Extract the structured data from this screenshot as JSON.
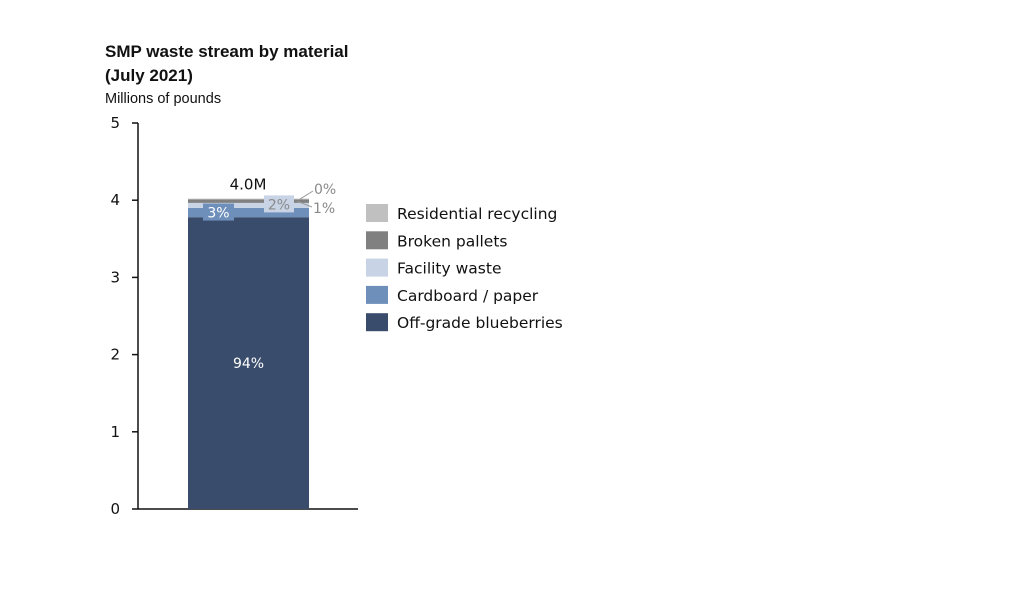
{
  "chart_data": {
    "type": "bar",
    "title": "SMP waste stream by material",
    "subtitle": "(July 2021)",
    "ylabel": "Millions of pounds",
    "ylim": [
      0,
      5
    ],
    "yticks": [
      "0",
      "1",
      "2",
      "3",
      "4",
      "5"
    ],
    "total": 4.02,
    "total_label": "4.0M",
    "legend_position": "right",
    "segments": [
      {
        "name": "Off-grade blueberries",
        "value": 3.78,
        "label": "94%",
        "color": "#3a4c6b"
      },
      {
        "name": "Cardboard / paper",
        "value": 0.12,
        "label": "3%",
        "color": "#6f8fbb"
      },
      {
        "name": "Facility waste",
        "value": 0.065,
        "label": "2%",
        "color": "#c8d3e5"
      },
      {
        "name": "Broken pallets",
        "value": 0.045,
        "label": "1%",
        "color": "#808080"
      },
      {
        "name": "Residential recycling",
        "value": 0.01,
        "label": "0%",
        "color": "#c0c0c0"
      }
    ],
    "legend_order": [
      "Residential recycling",
      "Broken pallets",
      "Facility waste",
      "Cardboard / paper",
      "Off-grade blueberries"
    ]
  }
}
